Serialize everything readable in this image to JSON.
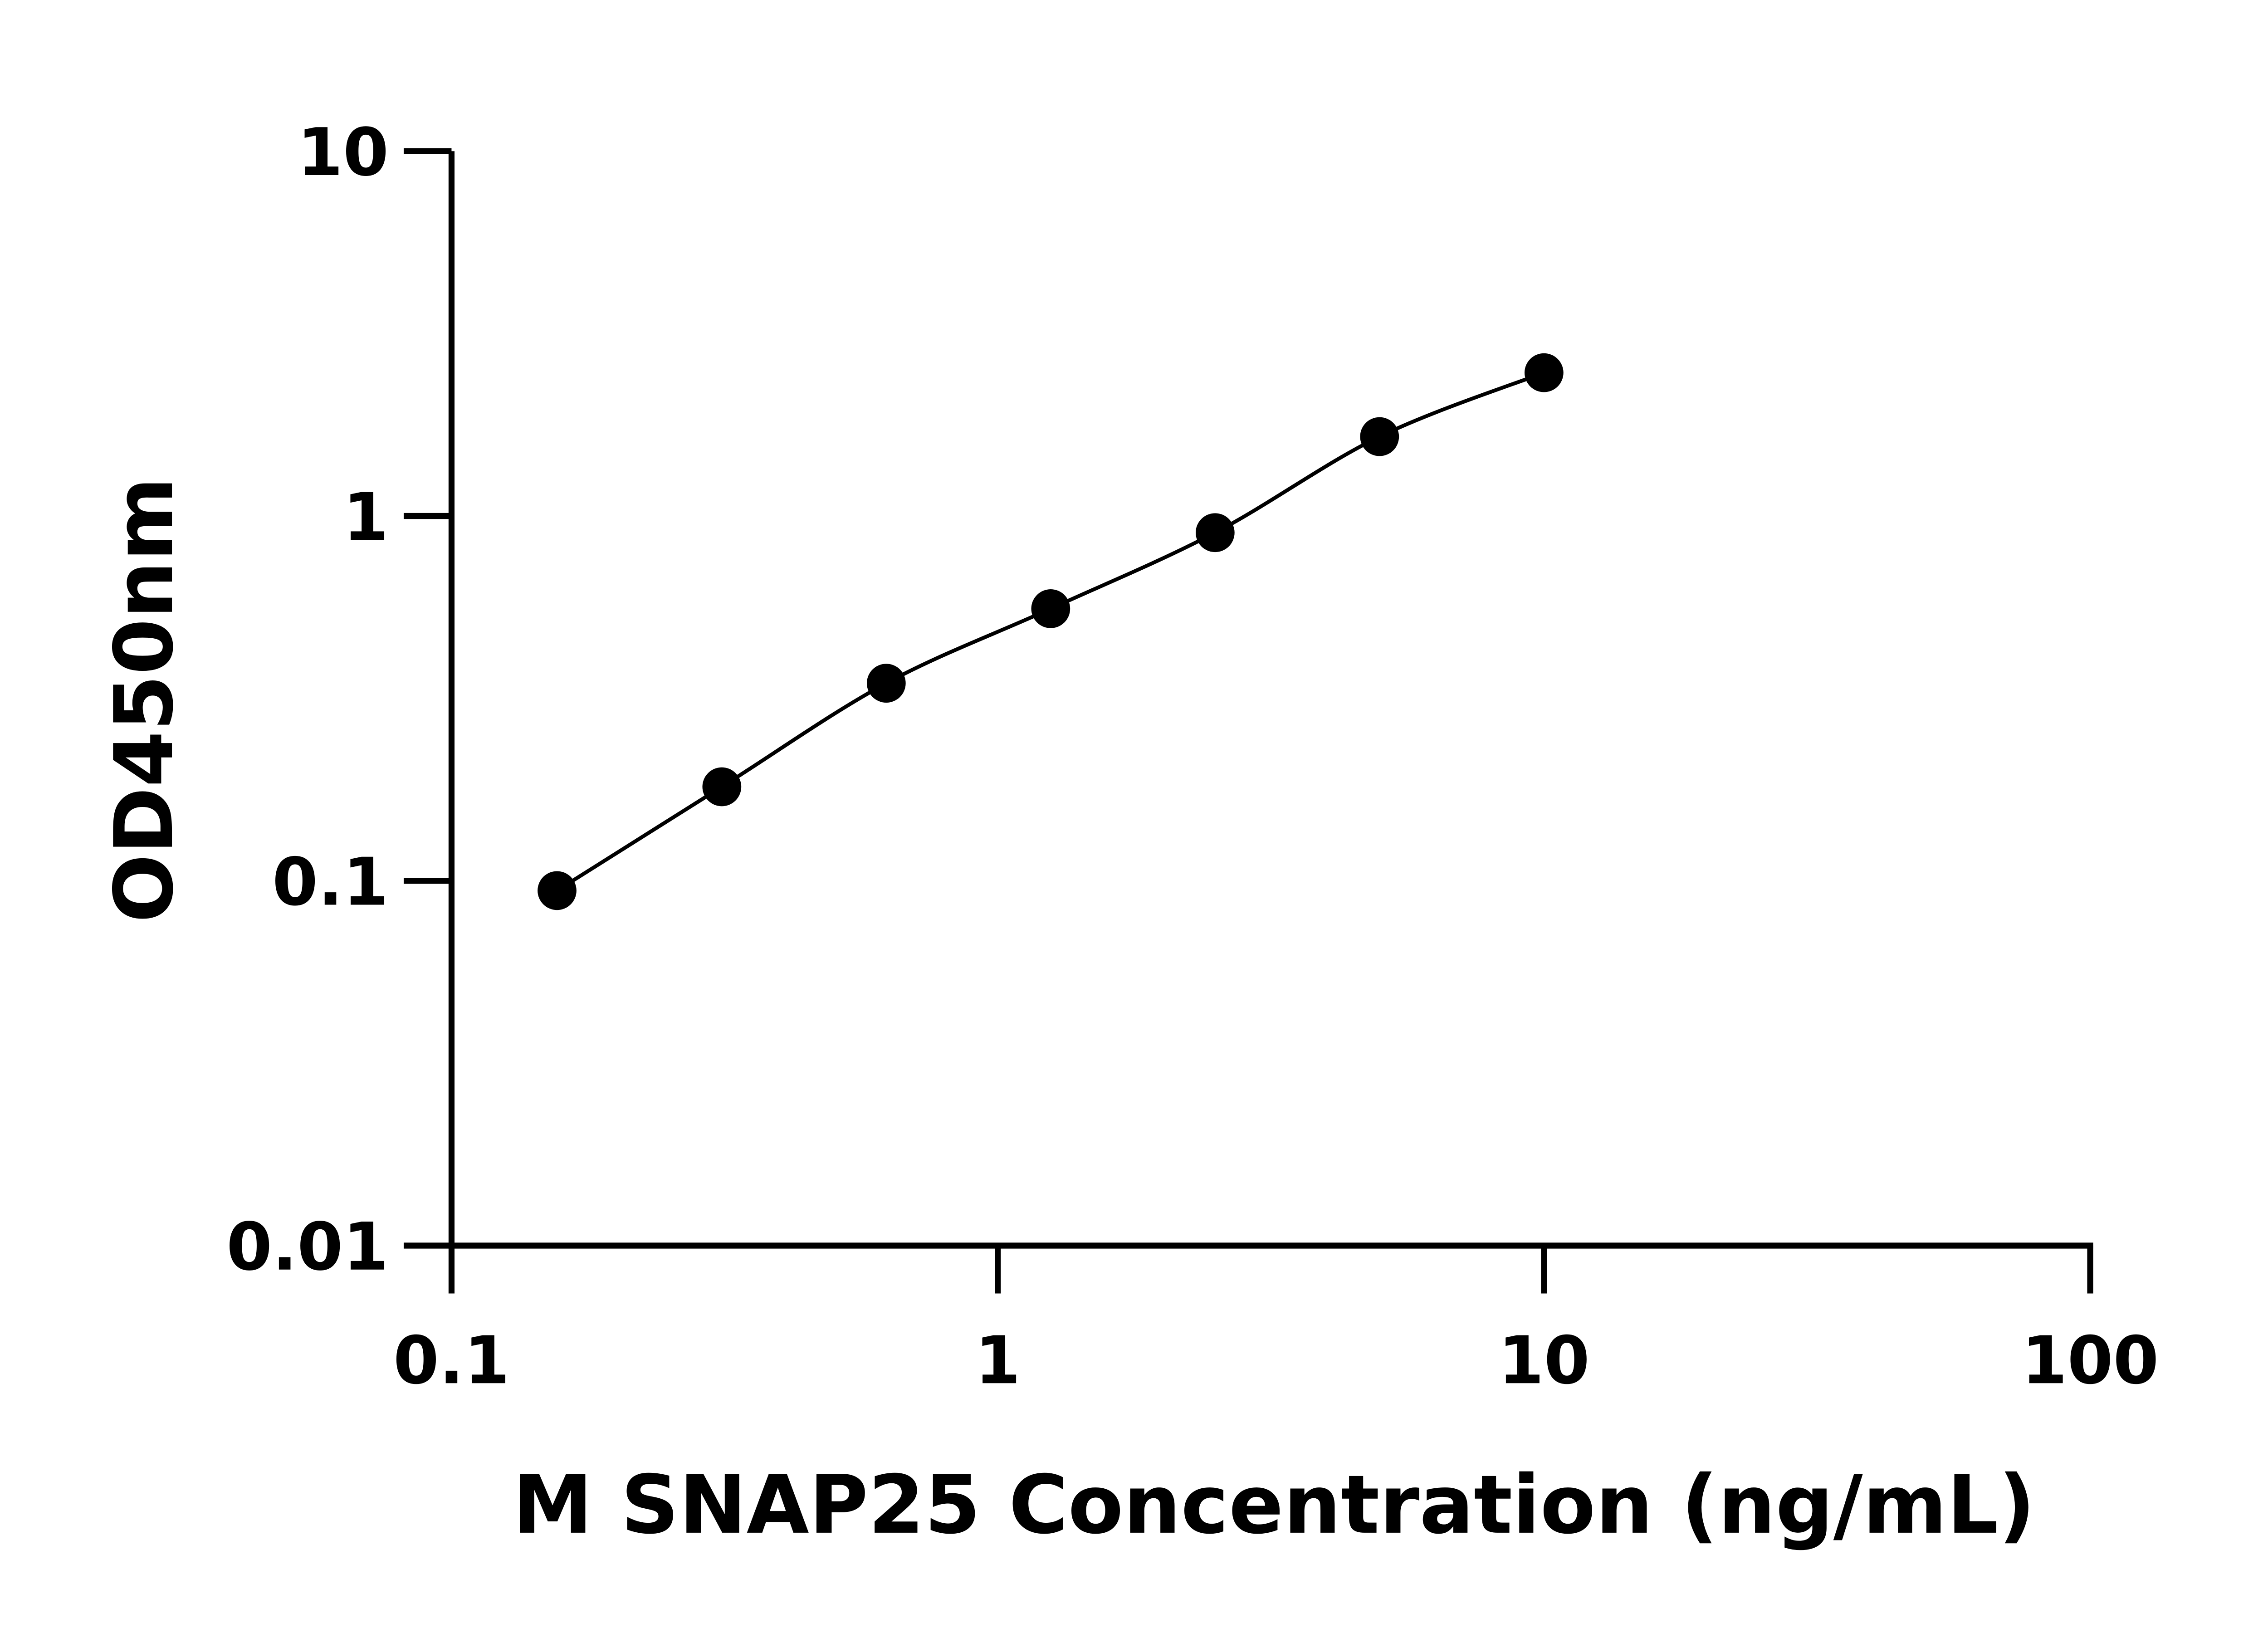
{
  "chart_data": {
    "type": "line",
    "title": "",
    "xlabel": "M SNAP25 Concentration (ng/mL)",
    "ylabel": "OD450nm",
    "x_scale": "log",
    "y_scale": "log",
    "xlim": [
      0.1,
      100
    ],
    "ylim": [
      0.01,
      10
    ],
    "x_ticks": [
      "0.1",
      "1",
      "10",
      "100"
    ],
    "y_ticks": [
      "0.01",
      "0.1",
      "1",
      "10"
    ],
    "grid": false,
    "series": [
      {
        "x": [
          0.156,
          0.3125,
          0.625,
          1.25,
          2.5,
          5,
          10
        ],
        "y": [
          0.094,
          0.181,
          0.348,
          0.557,
          0.9,
          1.65,
          2.47
        ],
        "marker": "circle",
        "color": "#000000",
        "fit_line": true
      }
    ]
  }
}
